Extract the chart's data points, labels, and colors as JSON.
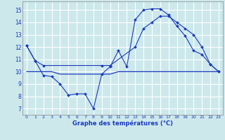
{
  "background_color": "#cce8eb",
  "grid_color": "#ffffff",
  "line_color": "#1a3abf",
  "xlabel": "Graphe des températures (°C)",
  "ylim": [
    6.5,
    15.7
  ],
  "xlim": [
    -0.5,
    23.5
  ],
  "yticks": [
    7,
    8,
    9,
    10,
    11,
    12,
    13,
    14,
    15
  ],
  "xticks": [
    0,
    1,
    2,
    3,
    4,
    5,
    6,
    7,
    8,
    9,
    10,
    11,
    12,
    13,
    14,
    15,
    16,
    17,
    18,
    19,
    20,
    21,
    22,
    23
  ],
  "series": [
    {
      "x": [
        0,
        1,
        2,
        3,
        4,
        5,
        6,
        7,
        8,
        9,
        10,
        11,
        12,
        13,
        14,
        15,
        16,
        17,
        18,
        19,
        20,
        21,
        22,
        23
      ],
      "y": [
        12.1,
        10.9,
        9.7,
        9.6,
        9.0,
        8.1,
        8.2,
        8.2,
        7.0,
        9.8,
        10.4,
        11.7,
        10.4,
        14.2,
        15.0,
        15.1,
        15.1,
        14.6,
        13.7,
        12.9,
        11.7,
        11.4,
        10.6,
        10.0
      ]
    },
    {
      "x": [
        0,
        1,
        2,
        3,
        4,
        5,
        6,
        7,
        8,
        9,
        10,
        11,
        12,
        13,
        14,
        15,
        16,
        17,
        18,
        19,
        20,
        21,
        22,
        23
      ],
      "y": [
        10.0,
        10.0,
        10.0,
        10.0,
        9.8,
        9.8,
        9.8,
        9.8,
        9.8,
        9.8,
        9.8,
        10.0,
        10.0,
        10.0,
        10.0,
        10.0,
        10.0,
        10.0,
        10.0,
        10.0,
        10.0,
        10.0,
        10.0,
        10.0
      ]
    },
    {
      "x": [
        0,
        1,
        2,
        9,
        10,
        13,
        14,
        15,
        16,
        17,
        18,
        19,
        20,
        21,
        22,
        23
      ],
      "y": [
        12.1,
        10.9,
        10.5,
        10.5,
        10.5,
        12.0,
        13.5,
        14.0,
        14.5,
        14.5,
        14.0,
        13.5,
        13.0,
        12.0,
        10.6,
        10.0
      ]
    }
  ]
}
